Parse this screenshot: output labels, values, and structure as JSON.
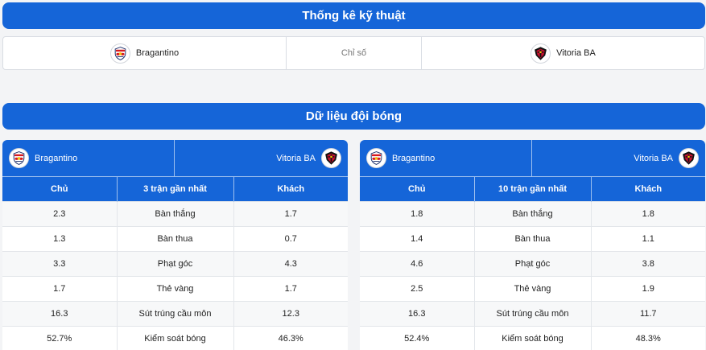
{
  "header": {
    "title": "Thống kê kỹ thuật"
  },
  "compare": {
    "home_team": "Bragantino",
    "metric_label": "Chỉ số",
    "away_team": "Vitoria BA"
  },
  "team_section": {
    "title": "Dữ liệu đội bóng"
  },
  "panels": [
    {
      "home_team": "Bragantino",
      "away_team": "Vitoria BA",
      "columns": [
        "Chủ",
        "3 trận gần nhất",
        "Khách"
      ],
      "rows": [
        [
          "2.3",
          "Bàn thắng",
          "1.7"
        ],
        [
          "1.3",
          "Bàn thua",
          "0.7"
        ],
        [
          "3.3",
          "Phạt góc",
          "4.3"
        ],
        [
          "1.7",
          "Thẻ vàng",
          "1.7"
        ],
        [
          "16.3",
          "Sút trúng cầu môn",
          "12.3"
        ],
        [
          "52.7%",
          "Kiểm soát bóng",
          "46.3%"
        ]
      ]
    },
    {
      "home_team": "Bragantino",
      "away_team": "Vitoria BA",
      "columns": [
        "Chủ",
        "10 trận gần nhất",
        "Khách"
      ],
      "rows": [
        [
          "1.8",
          "Bàn thắng",
          "1.8"
        ],
        [
          "1.4",
          "Bàn thua",
          "1.1"
        ],
        [
          "4.6",
          "Phạt góc",
          "3.8"
        ],
        [
          "2.5",
          "Thẻ vàng",
          "1.9"
        ],
        [
          "16.3",
          "Sút trúng cầu môn",
          "11.7"
        ],
        [
          "52.4%",
          "Kiểm soát bóng",
          "48.3%"
        ]
      ]
    }
  ],
  "icons": {
    "home_logo": "bragantino-logo",
    "away_logo": "vitoria-logo"
  },
  "colors": {
    "accent": "#1565d8",
    "home_red": "#d71920",
    "away_red": "#c8102e"
  }
}
